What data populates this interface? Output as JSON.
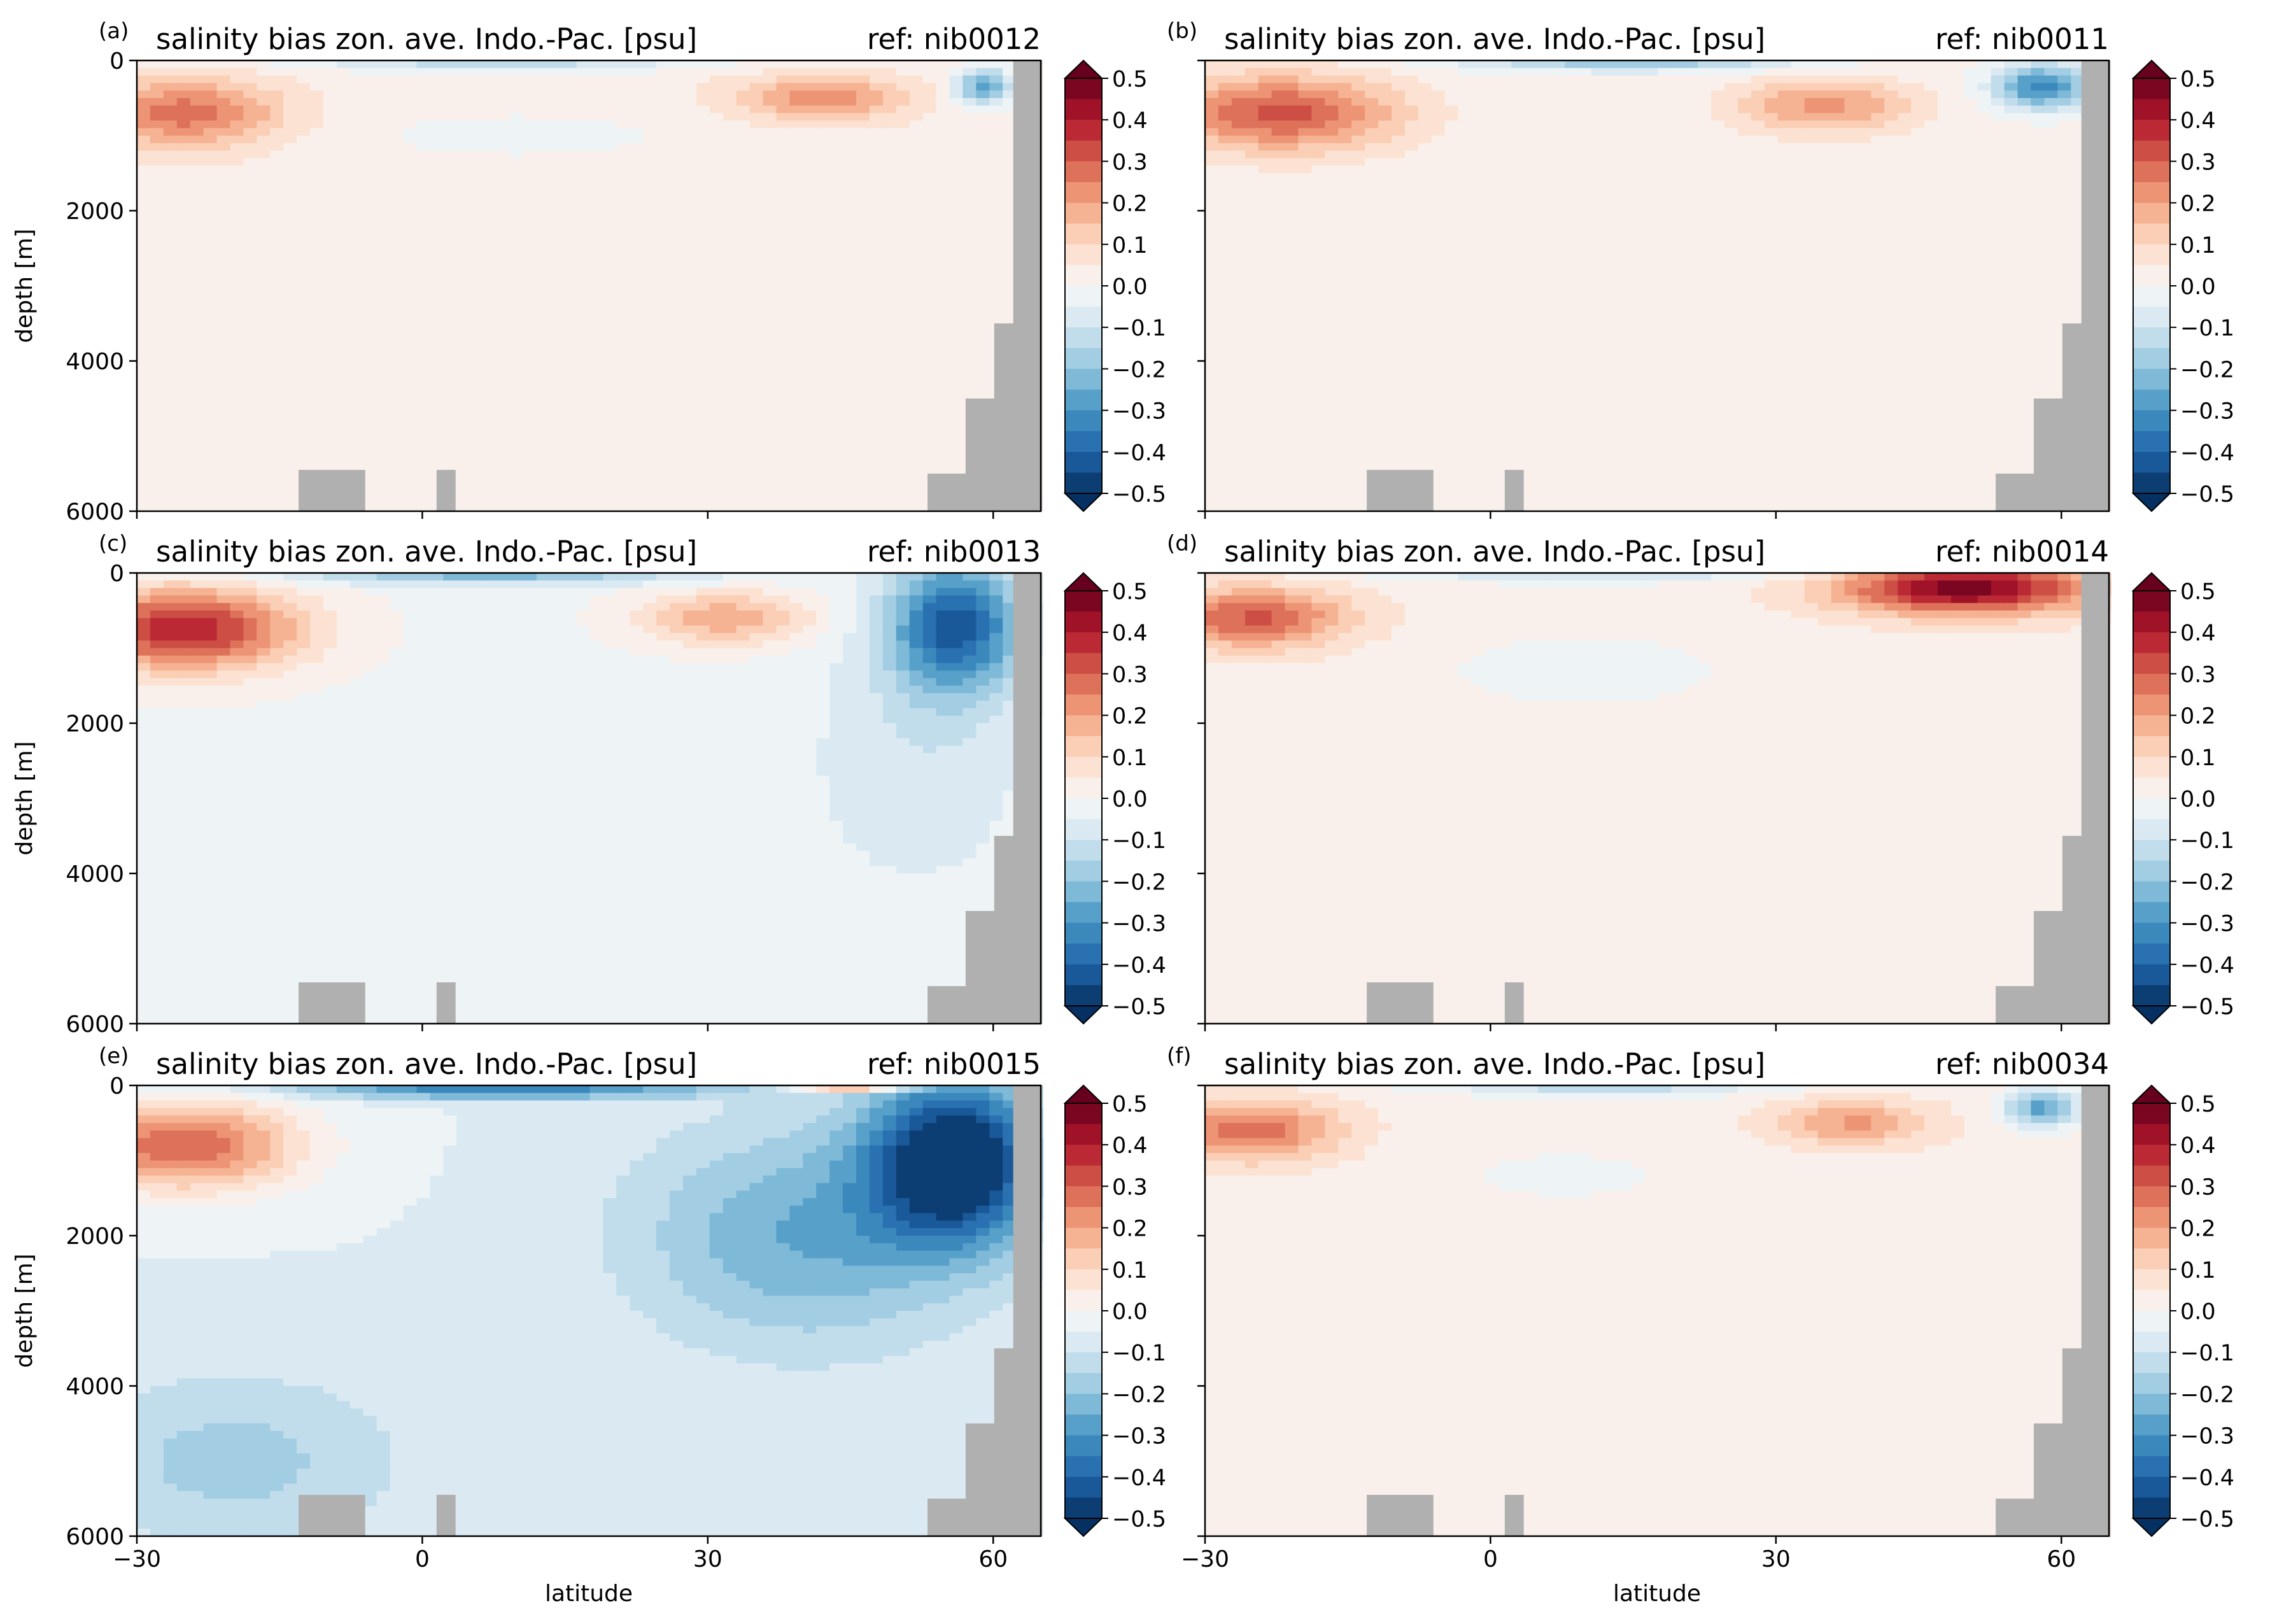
{
  "figure": {
    "xlabel": "latitude",
    "ylabel": "depth [m]",
    "land_color": "#b0b0b0"
  },
  "colorbar": {
    "ticks": [
      "0.5",
      "0.4",
      "0.3",
      "0.2",
      "0.1",
      "0.0",
      "−0.1",
      "−0.2",
      "−0.3",
      "−0.4",
      "−0.5"
    ],
    "range": [
      -0.5,
      0.5
    ],
    "step": 0.05,
    "colormap": "RdBu_r",
    "extend": "both"
  },
  "chart_data": [
    {
      "type": "heatmap",
      "panel_label": "(a)",
      "title": "salinity bias zon. ave. Indo.-Pac. [psu]",
      "ref": "ref: nib0012",
      "xlim": [
        -30,
        65
      ],
      "ylim": [
        6000,
        0
      ],
      "xticks": [
        "−30",
        "0",
        "30",
        "60"
      ],
      "yticks": [
        "0",
        "2000",
        "4000",
        "6000"
      ],
      "features": [
        {
          "lat": -25,
          "depth": 700,
          "value": 0.25,
          "wlat": 10,
          "wdepth": 450
        },
        {
          "lat": 42,
          "depth": 500,
          "value": 0.2,
          "wlat": 9,
          "wdepth": 300
        },
        {
          "lat": 8,
          "depth": 60,
          "value": -0.15,
          "wlat": 22,
          "wdepth": 90
        },
        {
          "lat": 59,
          "depth": 350,
          "value": -0.3,
          "wlat": 3,
          "wdepth": 250
        },
        {
          "lat": 10,
          "depth": 1000,
          "value": -0.05,
          "wlat": 18,
          "wdepth": 350
        }
      ],
      "base_value": 0.03
    },
    {
      "type": "heatmap",
      "panel_label": "(b)",
      "title": "salinity bias zon. ave. Indo.-Pac. [psu]",
      "ref": "ref: nib0011",
      "xlim": [
        -30,
        65
      ],
      "ylim": [
        6000,
        0
      ],
      "xticks": [
        "−30",
        "0",
        "30",
        "60"
      ],
      "yticks": [],
      "features": [
        {
          "lat": -22,
          "depth": 700,
          "value": 0.3,
          "wlat": 12,
          "wdepth": 500
        },
        {
          "lat": 35,
          "depth": 600,
          "value": 0.2,
          "wlat": 9,
          "wdepth": 350
        },
        {
          "lat": 15,
          "depth": 60,
          "value": -0.2,
          "wlat": 18,
          "wdepth": 90
        },
        {
          "lat": 58,
          "depth": 350,
          "value": -0.35,
          "wlat": 5,
          "wdepth": 300
        }
      ],
      "base_value": 0.02
    },
    {
      "type": "heatmap",
      "panel_label": "(c)",
      "title": "salinity bias zon. ave. Indo.-Pac. [psu]",
      "ref": "ref: nib0013",
      "xlim": [
        -30,
        65
      ],
      "ylim": [
        6000,
        0
      ],
      "xticks": [
        "−30",
        "0",
        "30",
        "60"
      ],
      "yticks": [
        "0",
        "2000",
        "4000",
        "6000"
      ],
      "features": [
        {
          "lat": -25,
          "depth": 750,
          "value": 0.4,
          "wlat": 12,
          "wdepth": 550
        },
        {
          "lat": 32,
          "depth": 600,
          "value": 0.2,
          "wlat": 9,
          "wdepth": 350
        },
        {
          "lat": 7,
          "depth": 60,
          "value": -0.2,
          "wlat": 22,
          "wdepth": 100
        },
        {
          "lat": 56,
          "depth": 700,
          "value": -0.4,
          "wlat": 7,
          "wdepth": 900
        },
        {
          "lat": 52,
          "depth": 2500,
          "value": -0.08,
          "wlat": 12,
          "wdepth": 1800
        }
      ],
      "base_value": -0.01
    },
    {
      "type": "heatmap",
      "panel_label": "(d)",
      "title": "salinity bias zon. ave. Indo.-Pac. [psu]",
      "ref": "ref: nib0014",
      "xlim": [
        -30,
        65
      ],
      "ylim": [
        6000,
        0
      ],
      "xticks": [
        "−30",
        "0",
        "30",
        "60"
      ],
      "yticks": [],
      "features": [
        {
          "lat": -25,
          "depth": 600,
          "value": 0.28,
          "wlat": 10,
          "wdepth": 400
        },
        {
          "lat": 50,
          "depth": 200,
          "value": 0.45,
          "wlat": 13,
          "wdepth": 350
        },
        {
          "lat": 10,
          "depth": 60,
          "value": -0.12,
          "wlat": 22,
          "wdepth": 80
        },
        {
          "lat": 10,
          "depth": 1300,
          "value": -0.05,
          "wlat": 18,
          "wdepth": 600
        }
      ],
      "base_value": 0.03
    },
    {
      "type": "heatmap",
      "panel_label": "(e)",
      "title": "salinity bias zon. ave. Indo.-Pac. [psu]",
      "ref": "ref: nib0015",
      "xlim": [
        -30,
        65
      ],
      "ylim": [
        6000,
        0
      ],
      "xticks": [
        "−30",
        "0",
        "30",
        "60"
      ],
      "yticks": [
        "0",
        "2000",
        "4000",
        "6000"
      ],
      "features": [
        {
          "lat": -25,
          "depth": 800,
          "value": 0.35,
          "wlat": 12,
          "wdepth": 600
        },
        {
          "lat": 45,
          "depth": 40,
          "value": 0.3,
          "wlat": 6,
          "wdepth": 60
        },
        {
          "lat": 8,
          "depth": 60,
          "value": -0.3,
          "wlat": 22,
          "wdepth": 120
        },
        {
          "lat": 56,
          "depth": 1000,
          "value": -0.5,
          "wlat": 9,
          "wdepth": 1100
        },
        {
          "lat": 40,
          "depth": 2000,
          "value": -0.2,
          "wlat": 18,
          "wdepth": 1500
        },
        {
          "lat": -20,
          "depth": 5000,
          "value": -0.12,
          "wlat": 18,
          "wdepth": 1200
        }
      ],
      "base_value": -0.05
    },
    {
      "type": "heatmap",
      "panel_label": "(f)",
      "title": "salinity bias zon. ave. Indo.-Pac. [psu]",
      "ref": "ref: nib0034",
      "xlim": [
        -30,
        65
      ],
      "ylim": [
        6000,
        0
      ],
      "xticks": [
        "−30",
        "0",
        "30",
        "60"
      ],
      "yticks": [],
      "features": [
        {
          "lat": -25,
          "depth": 600,
          "value": 0.25,
          "wlat": 9,
          "wdepth": 400
        },
        {
          "lat": 38,
          "depth": 500,
          "value": 0.18,
          "wlat": 8,
          "wdepth": 300
        },
        {
          "lat": 12,
          "depth": 60,
          "value": -0.15,
          "wlat": 18,
          "wdepth": 90
        },
        {
          "lat": 58,
          "depth": 300,
          "value": -0.3,
          "wlat": 4,
          "wdepth": 250
        },
        {
          "lat": 8,
          "depth": 1200,
          "value": -0.04,
          "wlat": 16,
          "wdepth": 500
        }
      ],
      "base_value": 0.03
    }
  ]
}
